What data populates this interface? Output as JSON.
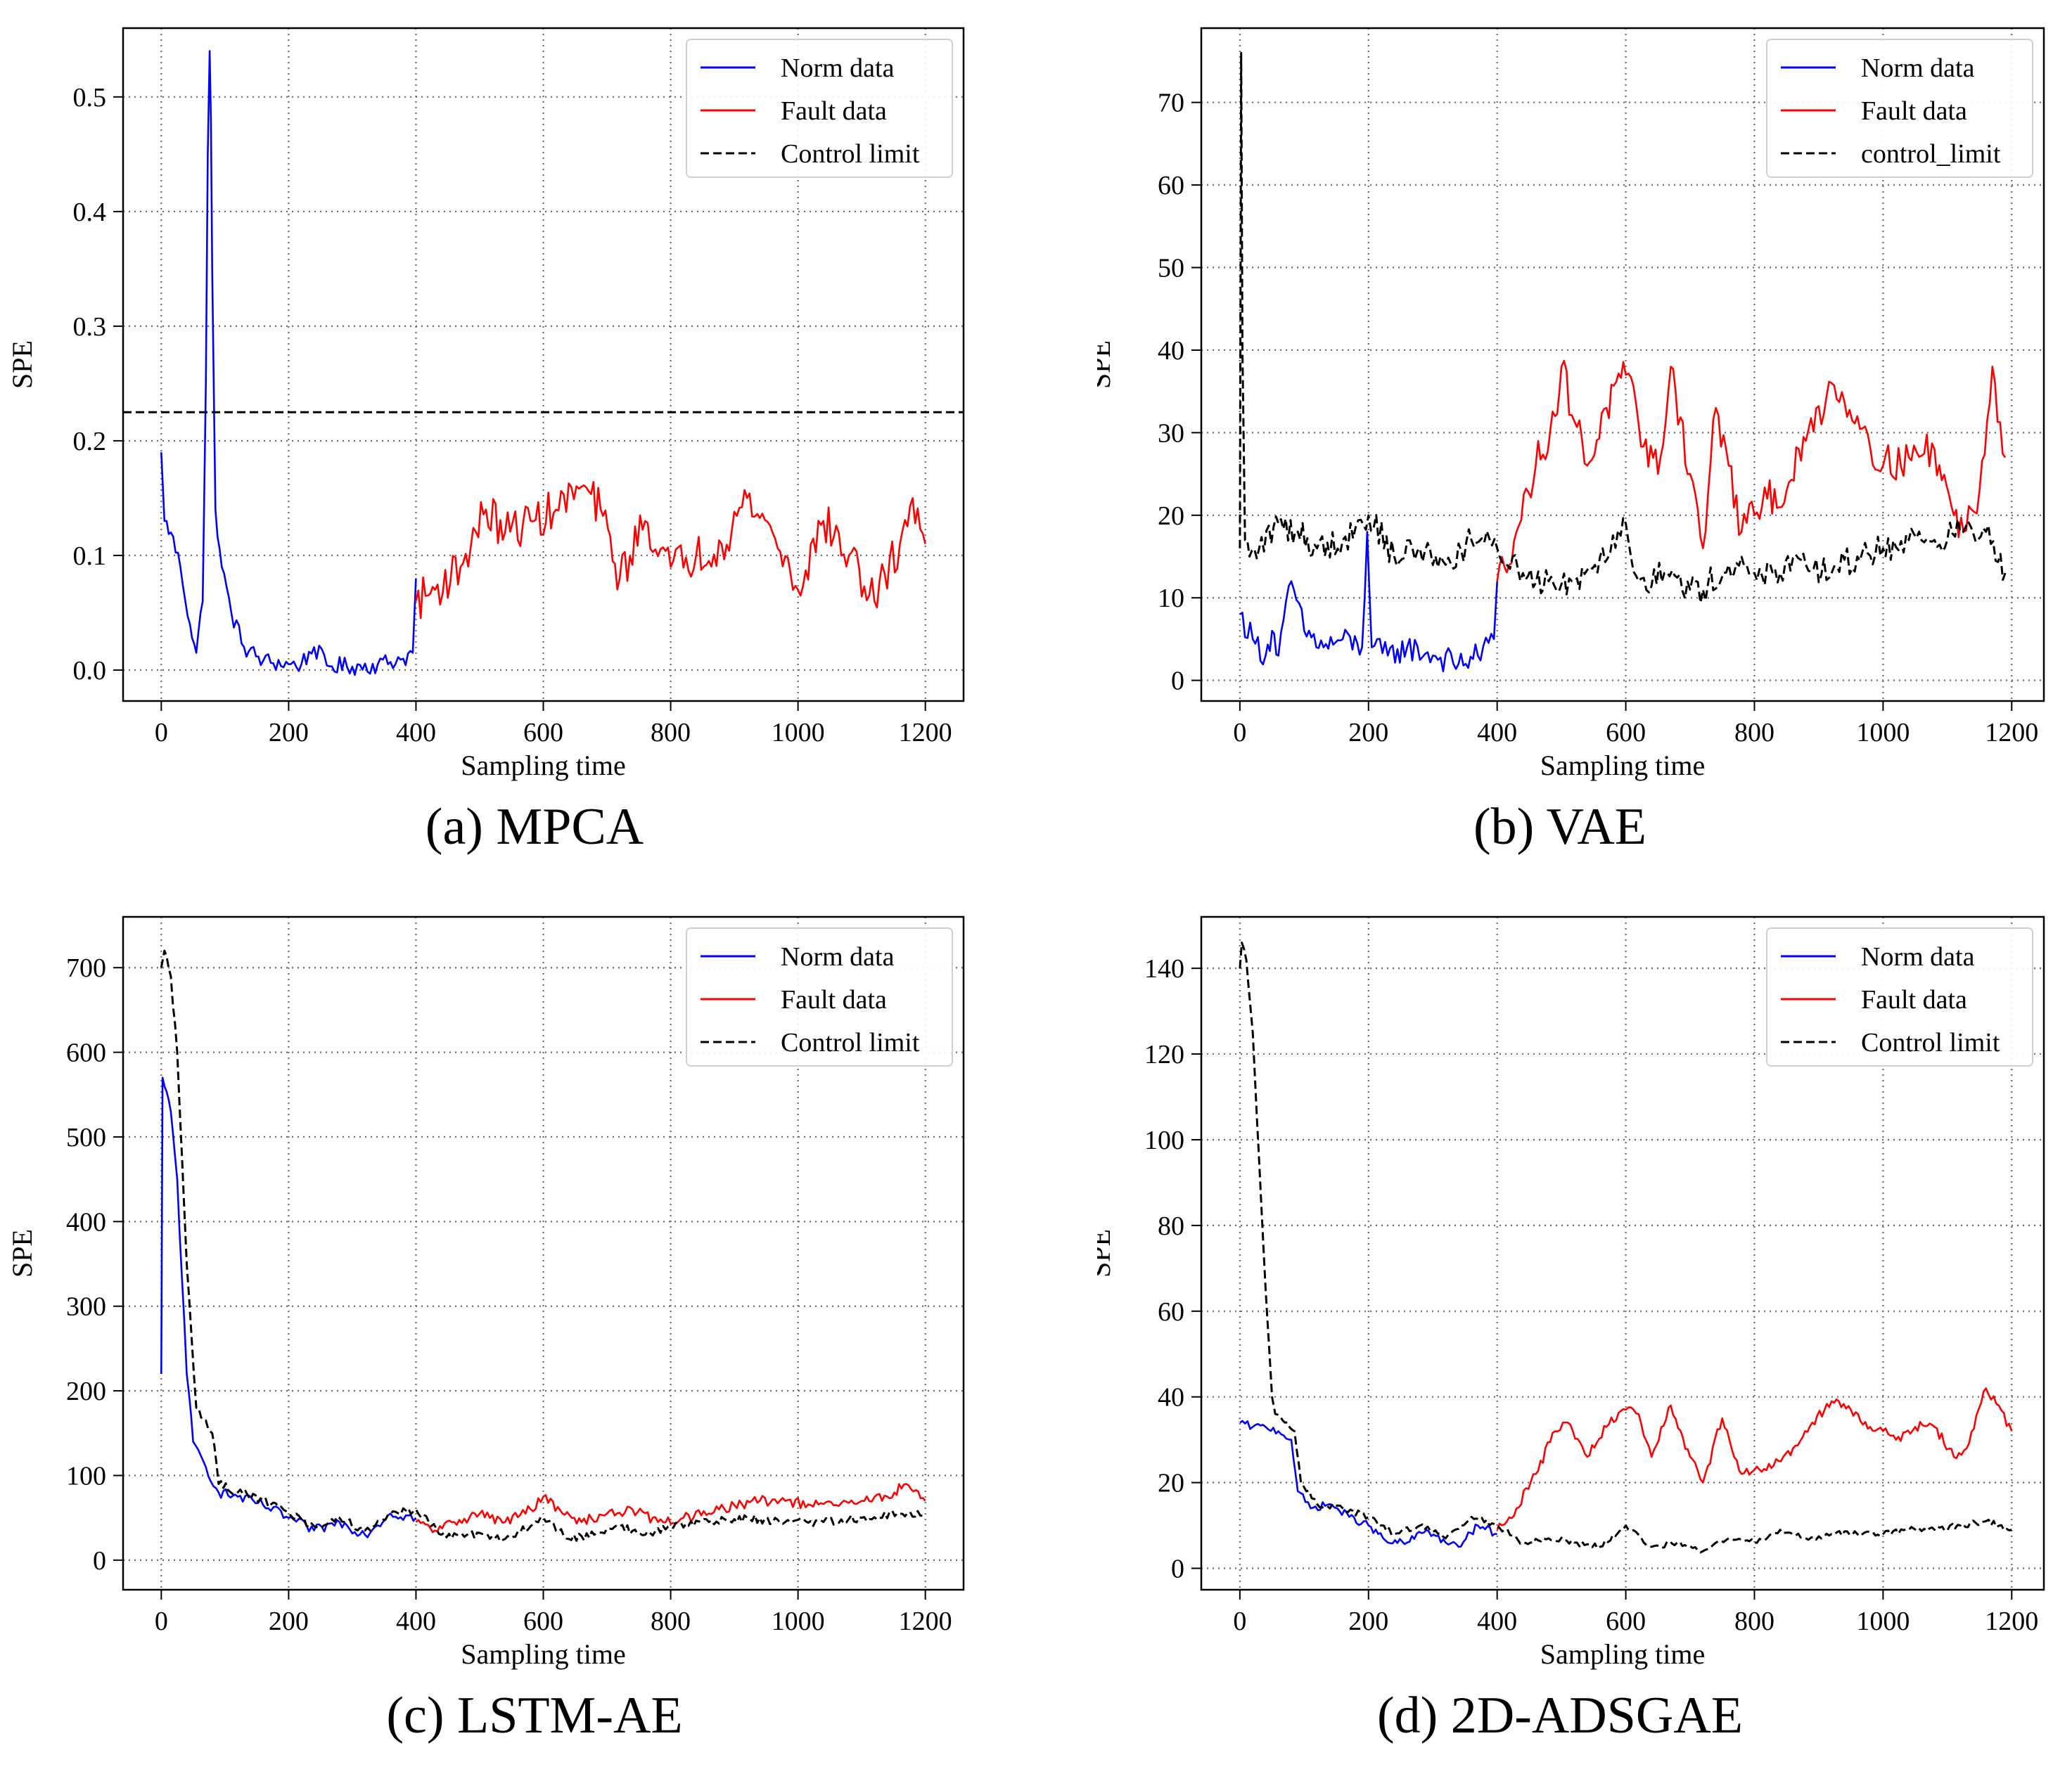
{
  "figure": {
    "panels": [
      {
        "id": "a",
        "caption": "(a) MPCA"
      },
      {
        "id": "b",
        "caption": "(b) VAE"
      },
      {
        "id": "c",
        "caption": "(c) LSTM-AE"
      },
      {
        "id": "d",
        "caption": "(d) 2D-ADSGAE"
      }
    ]
  },
  "colors": {
    "norm": "#0000ff",
    "fault": "#ff0000",
    "limit": "#000000"
  },
  "chart_data": [
    {
      "id": "a",
      "type": "line",
      "caption": "(a) MPCA",
      "xlabel": "Sampling time",
      "ylabel": "SPE",
      "xlim": [
        -60,
        1260
      ],
      "ylim": [
        -0.027,
        0.56
      ],
      "xticks": [
        0,
        200,
        400,
        600,
        800,
        1000,
        1200
      ],
      "xtick_labels": [
        "0",
        "200",
        "400",
        "600",
        "800",
        "1000",
        "1200"
      ],
      "yticks": [
        0.0,
        0.1,
        0.2,
        0.3,
        0.4,
        0.5
      ],
      "ytick_labels": [
        "0.0",
        "0.1",
        "0.2",
        "0.3",
        "0.4",
        "0.5"
      ],
      "grid": true,
      "legend_position": "top-right",
      "legend": [
        "Norm data",
        "Fault data",
        "Control limit"
      ],
      "series": [
        {
          "name": "Norm data",
          "role": "norm",
          "noise": 0.008,
          "x": [
            0,
            5,
            15,
            30,
            45,
            55,
            65,
            70,
            73,
            76,
            78,
            80,
            85,
            95,
            110,
            130,
            160,
            200,
            220,
            240,
            260,
            300,
            340,
            380,
            395,
            400
          ],
          "y": [
            0.19,
            0.13,
            0.12,
            0.09,
            0.04,
            0.015,
            0.06,
            0.25,
            0.45,
            0.54,
            0.48,
            0.35,
            0.14,
            0.09,
            0.05,
            0.02,
            0.008,
            0.005,
            0.005,
            0.02,
            0.004,
            0.003,
            0.005,
            0.01,
            0.015,
            0.08
          ]
        },
        {
          "name": "Fault data",
          "role": "fault",
          "noise": 0.018,
          "x": [
            400,
            430,
            470,
            510,
            540,
            580,
            620,
            660,
            690,
            720,
            760,
            800,
            840,
            880,
            920,
            960,
            1000,
            1040,
            1080,
            1120,
            1160,
            1180,
            1200
          ],
          "y": [
            0.06,
            0.07,
            0.09,
            0.14,
            0.12,
            0.13,
            0.14,
            0.16,
            0.14,
            0.08,
            0.13,
            0.09,
            0.1,
            0.11,
            0.15,
            0.12,
            0.07,
            0.13,
            0.1,
            0.06,
            0.11,
            0.15,
            0.11
          ]
        },
        {
          "name": "Control limit",
          "role": "limit",
          "noise": 0,
          "x": [
            -60,
            1260
          ],
          "y": [
            0.225,
            0.225
          ]
        }
      ]
    },
    {
      "id": "b",
      "type": "line",
      "caption": "(b) VAE",
      "xlabel": "Sampling time",
      "ylabel": "SPE",
      "xlim": [
        -60,
        1250
      ],
      "ylim": [
        -2.5,
        79
      ],
      "xticks": [
        0,
        200,
        400,
        600,
        800,
        1000,
        1200
      ],
      "xtick_labels": [
        "0",
        "200",
        "400",
        "600",
        "800",
        "1000",
        "1200"
      ],
      "yticks": [
        0,
        10,
        20,
        30,
        40,
        50,
        60,
        70
      ],
      "ytick_labels": [
        "0",
        "10",
        "20",
        "30",
        "40",
        "50",
        "60",
        "70"
      ],
      "grid": true,
      "legend_position": "top-right",
      "legend": [
        "Norm data",
        "Fault data",
        "control_limit"
      ],
      "series": [
        {
          "name": "Norm data",
          "role": "norm",
          "noise": 1.6,
          "x": [
            0,
            20,
            40,
            50,
            60,
            80,
            100,
            130,
            160,
            190,
            198,
            205,
            230,
            260,
            300,
            340,
            370,
            395,
            400
          ],
          "y": [
            8,
            5,
            3,
            6,
            3,
            12,
            6,
            4,
            5,
            4,
            18,
            4,
            3,
            4,
            3,
            2,
            3,
            5,
            12
          ]
        },
        {
          "name": "Fault data",
          "role": "fault",
          "noise": 2.3,
          "x": [
            400,
            430,
            460,
            490,
            500,
            540,
            570,
            600,
            620,
            650,
            670,
            700,
            720,
            740,
            760,
            780,
            800,
            820,
            850,
            880,
            920,
            960,
            1000,
            1040,
            1080,
            1110,
            1125,
            1150,
            1170,
            1190
          ],
          "y": [
            12,
            18,
            26,
            32,
            38,
            26,
            33,
            37,
            31,
            25,
            38,
            25,
            16,
            33,
            26,
            18,
            20,
            22,
            23,
            29,
            36,
            32,
            26,
            27,
            28,
            20,
            18,
            23,
            38,
            27
          ]
        },
        {
          "name": "control_limit",
          "role": "limit",
          "noise": 1.8,
          "x": [
            0,
            2,
            4,
            8,
            15,
            30,
            60,
            90,
            120,
            160,
            200,
            240,
            280,
            320,
            360,
            400,
            440,
            480,
            520,
            560,
            600,
            620,
            660,
            700,
            720,
            760,
            800,
            840,
            880,
            920,
            960,
            1000,
            1040,
            1080,
            1120,
            1160,
            1190
          ],
          "y": [
            16,
            76,
            40,
            17,
            15,
            16,
            19,
            18,
            16,
            17,
            20,
            15,
            16,
            14,
            17,
            16,
            13,
            12,
            12,
            15,
            19,
            12,
            13,
            11,
            11,
            14,
            13,
            13,
            14,
            13,
            15,
            16,
            17,
            17,
            18,
            18,
            13
          ]
        }
      ]
    },
    {
      "id": "c",
      "type": "line",
      "caption": "(c) LSTM-AE",
      "xlabel": "Sampling time",
      "ylabel": "SPE",
      "xlim": [
        -60,
        1260
      ],
      "ylim": [
        -35,
        760
      ],
      "xticks": [
        0,
        200,
        400,
        600,
        800,
        1000,
        1200
      ],
      "xtick_labels": [
        "0",
        "200",
        "400",
        "600",
        "800",
        "1000",
        "1200"
      ],
      "yticks": [
        0,
        100,
        200,
        300,
        400,
        500,
        600,
        700
      ],
      "ytick_labels": [
        "0",
        "100",
        "200",
        "300",
        "400",
        "500",
        "600",
        "700"
      ],
      "grid": true,
      "legend_position": "top-right",
      "legend": [
        "Norm data",
        "Fault data",
        "Control limit"
      ],
      "series": [
        {
          "name": "Norm data",
          "role": "norm",
          "noise": 6,
          "x": [
            0,
            2,
            5,
            15,
            25,
            40,
            50,
            70,
            90,
            120,
            160,
            200,
            240,
            280,
            320,
            360,
            400
          ],
          "y": [
            220,
            570,
            560,
            530,
            450,
            220,
            140,
            110,
            80,
            75,
            65,
            50,
            35,
            45,
            30,
            55,
            50
          ]
        },
        {
          "name": "Fault data",
          "role": "fault",
          "noise": 6,
          "x": [
            400,
            430,
            460,
            500,
            540,
            580,
            600,
            630,
            660,
            700,
            740,
            780,
            820,
            860,
            900,
            940,
            980,
            1020,
            1060,
            1100,
            1140,
            1170,
            1200
          ],
          "y": [
            45,
            35,
            45,
            55,
            45,
            60,
            75,
            55,
            45,
            55,
            60,
            45,
            50,
            55,
            65,
            70,
            70,
            65,
            65,
            70,
            75,
            90,
            70
          ]
        },
        {
          "name": "Control limit",
          "role": "limit",
          "noise": 5,
          "x": [
            0,
            5,
            15,
            25,
            40,
            55,
            70,
            80,
            90,
            120,
            160,
            200,
            240,
            280,
            320,
            360,
            400,
            440,
            480,
            540,
            580,
            600,
            640,
            680,
            720,
            760,
            800,
            860,
            920,
            980,
            1040,
            1100,
            1160,
            1200
          ],
          "y": [
            700,
            720,
            690,
            600,
            350,
            180,
            165,
            150,
            90,
            80,
            70,
            55,
            40,
            50,
            35,
            55,
            60,
            30,
            30,
            25,
            40,
            50,
            25,
            30,
            40,
            30,
            40,
            45,
            50,
            45,
            45,
            50,
            55,
            55
          ]
        }
      ]
    },
    {
      "id": "d",
      "type": "line",
      "caption": "(d) 2D-ADSGAE",
      "xlabel": "Sampling time",
      "ylabel": "SPE",
      "xlim": [
        -60,
        1250
      ],
      "ylim": [
        -5,
        152
      ],
      "xticks": [
        0,
        200,
        400,
        600,
        800,
        1000,
        1200
      ],
      "xtick_labels": [
        "0",
        "200",
        "400",
        "600",
        "800",
        "1000",
        "1200"
      ],
      "yticks": [
        0,
        20,
        40,
        60,
        80,
        100,
        120,
        140
      ],
      "ytick_labels": [
        "0",
        "20",
        "40",
        "60",
        "80",
        "100",
        "120",
        "140"
      ],
      "grid": true,
      "legend_position": "top-right",
      "legend": [
        "Norm data",
        "Fault data",
        "Control limit"
      ],
      "series": [
        {
          "name": "Norm data",
          "role": "norm",
          "noise": 0.9,
          "x": [
            0,
            20,
            40,
            60,
            80,
            90,
            110,
            140,
            170,
            200,
            230,
            260,
            290,
            320,
            340,
            370,
            400
          ],
          "y": [
            34,
            33,
            33,
            32,
            30,
            18,
            14,
            15,
            12,
            10,
            6,
            6,
            9,
            6,
            5,
            10,
            8
          ]
        },
        {
          "name": "Fault data",
          "role": "fault",
          "noise": 1.2,
          "x": [
            400,
            430,
            460,
            490,
            510,
            540,
            570,
            600,
            620,
            640,
            670,
            700,
            720,
            750,
            780,
            800,
            830,
            860,
            890,
            920,
            950,
            980,
            1000,
            1020,
            1050,
            1080,
            1110,
            1130,
            1160,
            1180,
            1200
          ],
          "y": [
            9,
            14,
            22,
            32,
            34,
            26,
            33,
            37,
            36,
            26,
            38,
            26,
            20,
            35,
            22,
            23,
            24,
            28,
            34,
            39,
            37,
            33,
            32,
            30,
            33,
            33,
            26,
            28,
            42,
            38,
            32
          ]
        },
        {
          "name": "Control limit",
          "role": "limit",
          "noise": 0.7,
          "x": [
            0,
            3,
            10,
            20,
            30,
            40,
            50,
            55,
            70,
            85,
            95,
            120,
            160,
            200,
            240,
            280,
            320,
            360,
            400,
            440,
            480,
            520,
            560,
            600,
            640,
            680,
            720,
            760,
            800,
            840,
            880,
            920,
            960,
            1000,
            1040,
            1080,
            1120,
            1160,
            1200
          ],
          "y": [
            140,
            146,
            142,
            125,
            95,
            65,
            40,
            36,
            34,
            32,
            20,
            15,
            14,
            12,
            8,
            10,
            7,
            12,
            10,
            6,
            7,
            6,
            5,
            10,
            5,
            6,
            4,
            7,
            6,
            9,
            7,
            8,
            8,
            8,
            9,
            9,
            10,
            11,
            9
          ]
        }
      ]
    }
  ]
}
